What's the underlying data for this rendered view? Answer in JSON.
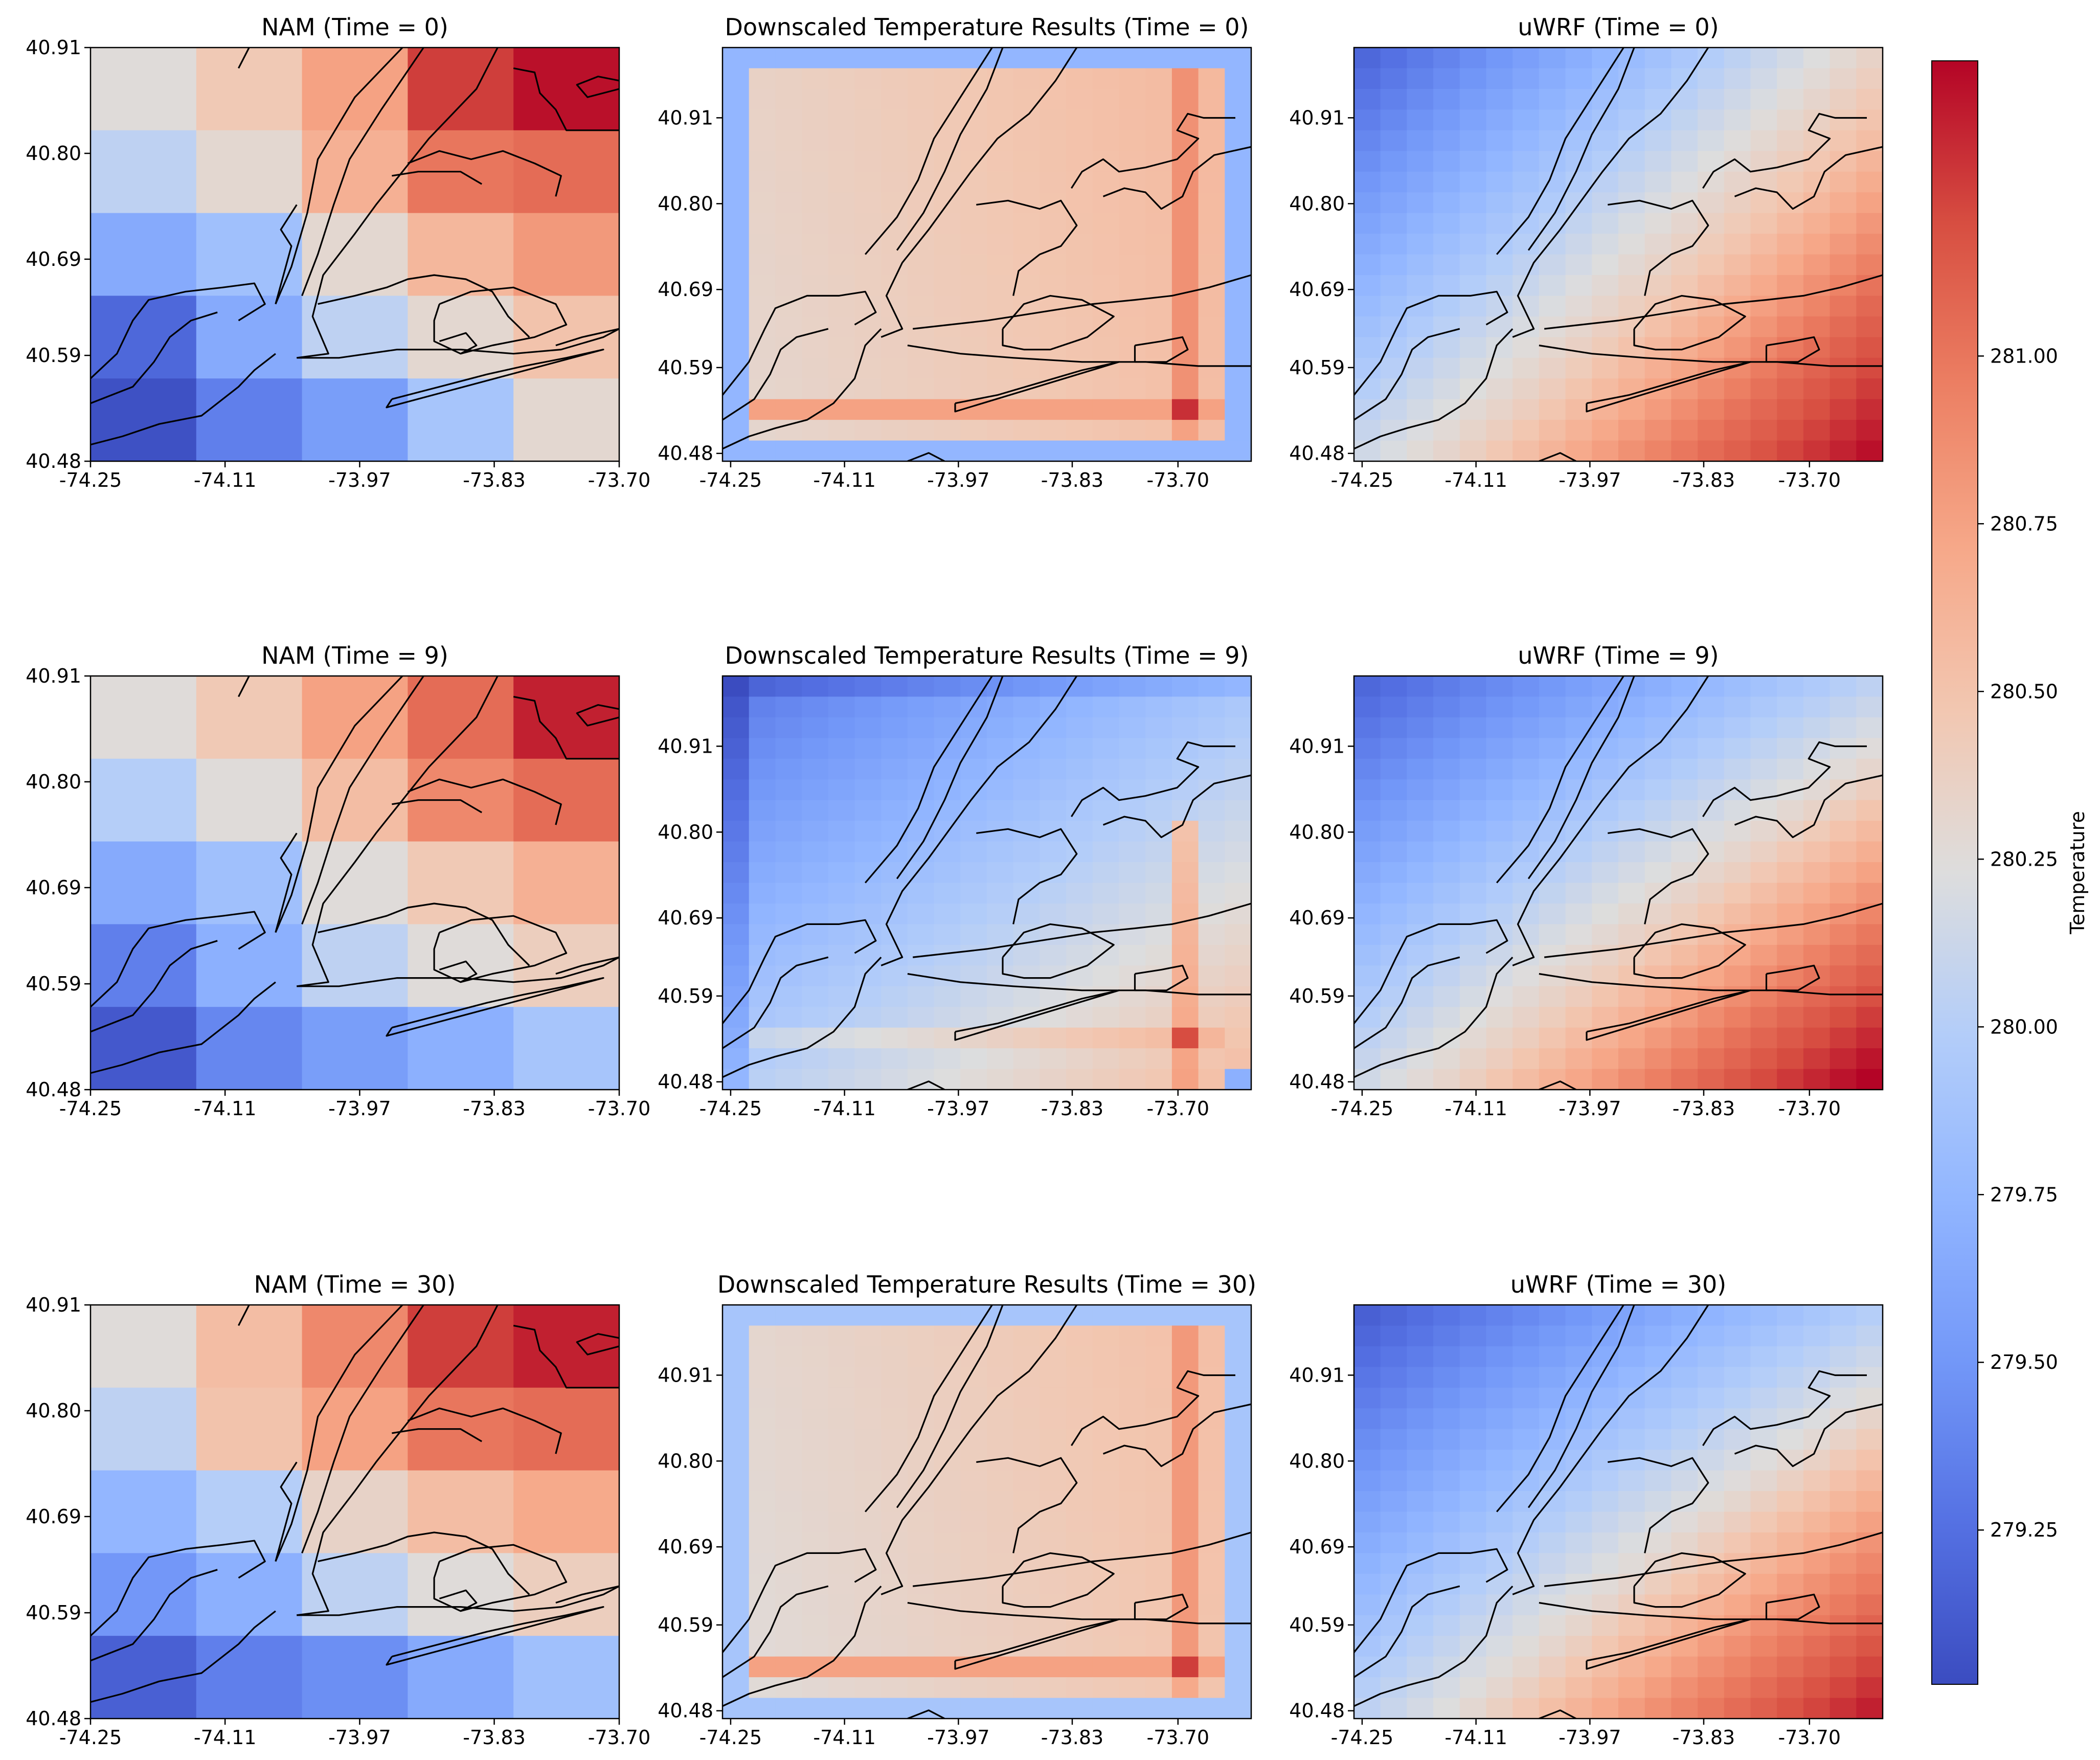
{
  "chart_data": [
    {
      "type": "heatmap",
      "title": "NAM (Time = 0)",
      "x_tick_labels": [
        "-74.25",
        "-74.11",
        "-73.97",
        "-73.83",
        "-73.70"
      ],
      "y_tick_labels": [
        "40.91",
        "40.80",
        "40.69",
        "40.59",
        "40.48"
      ],
      "nrows": 5,
      "ncols": 5,
      "xlim": [
        -74.25,
        -73.7
      ],
      "ylim": [
        40.48,
        40.91
      ],
      "grid": false,
      "values": [
        [
          280.25,
          280.45,
          280.75,
          281.25,
          281.4
        ],
        [
          280.05,
          280.3,
          280.65,
          281.0,
          281.05
        ],
        [
          279.65,
          279.85,
          280.3,
          280.6,
          280.8
        ],
        [
          279.2,
          279.65,
          280.05,
          280.3,
          280.5
        ],
        [
          279.05,
          279.35,
          279.55,
          279.9,
          280.3
        ]
      ]
    },
    {
      "type": "heatmap",
      "title": "Downscaled Temperature Results (Time = 0)",
      "x_tick_labels": [
        "-74.25",
        "-74.11",
        "-73.97",
        "-73.83",
        "-73.70"
      ],
      "y_tick_labels": [
        "40.91",
        "40.80",
        "40.69",
        "40.59",
        "40.48"
      ],
      "nrows": 20,
      "ncols": 20,
      "grid": false,
      "x_range": [
        -74.25,
        -73.6
      ],
      "y_range": [
        40.47,
        41.0
      ],
      "base_interior": 280.5,
      "description_values": {
        "border": 279.75,
        "interior": 280.45,
        "hot_column": 280.85,
        "hot_row": 280.75,
        "max": 281.3
      }
    },
    {
      "type": "heatmap",
      "title": "uWRF (Time = 0)",
      "x_tick_labels": [
        "-74.25",
        "-74.11",
        "-73.97",
        "-73.83",
        "-73.70"
      ],
      "y_tick_labels": [
        "40.91",
        "40.80",
        "40.69",
        "40.59",
        "40.48"
      ],
      "nrows": 20,
      "ncols": 20,
      "grid": false,
      "x_range": [
        -74.25,
        -73.6
      ],
      "y_range": [
        40.47,
        41.0
      ],
      "corner_values": {
        "top_left": 279.2,
        "top_right": 280.35,
        "bottom_left": 280.15,
        "bottom_right": 281.25
      }
    },
    {
      "type": "heatmap",
      "title": "NAM (Time = 9)",
      "x_tick_labels": [
        "-74.25",
        "-74.11",
        "-73.97",
        "-73.83",
        "-73.70"
      ],
      "y_tick_labels": [
        "40.91",
        "40.80",
        "40.69",
        "40.59",
        "40.48"
      ],
      "nrows": 5,
      "ncols": 5,
      "xlim": [
        -74.25,
        -73.7
      ],
      "ylim": [
        40.48,
        40.91
      ],
      "grid": false,
      "values": [
        [
          280.25,
          280.45,
          280.75,
          281.05,
          281.35
        ],
        [
          280.0,
          280.25,
          280.55,
          280.9,
          281.05
        ],
        [
          279.65,
          279.85,
          280.25,
          280.45,
          280.65
        ],
        [
          279.35,
          279.7,
          280.05,
          280.25,
          280.4
        ],
        [
          279.1,
          279.4,
          279.55,
          279.7,
          279.9
        ]
      ]
    },
    {
      "type": "heatmap",
      "title": "Downscaled Temperature Results (Time = 9)",
      "x_tick_labels": [
        "-74.25",
        "-74.11",
        "-73.97",
        "-73.83",
        "-73.70"
      ],
      "y_tick_labels": [
        "40.91",
        "40.80",
        "40.69",
        "40.59",
        "40.48"
      ],
      "nrows": 20,
      "ncols": 20,
      "grid": false,
      "x_range": [
        -74.25,
        -73.6
      ],
      "y_range": [
        40.47,
        41.0
      ],
      "description_values": {
        "top_left": 279.3,
        "top_right": 279.9,
        "bottom_left": 280.0,
        "bottom_right": 280.55,
        "hot_column": 280.75,
        "max": 281.2
      }
    },
    {
      "type": "heatmap",
      "title": "uWRF (Time = 9)",
      "x_tick_labels": [
        "-74.25",
        "-74.11",
        "-73.97",
        "-73.83",
        "-73.70"
      ],
      "y_tick_labels": [
        "40.91",
        "40.80",
        "40.69",
        "40.59",
        "40.48"
      ],
      "nrows": 20,
      "ncols": 20,
      "grid": false,
      "x_range": [
        -74.25,
        -73.6
      ],
      "y_range": [
        40.47,
        41.0
      ],
      "corner_values": {
        "top_left": 279.2,
        "top_right": 280.05,
        "bottom_left": 280.15,
        "bottom_right": 281.3
      }
    },
    {
      "type": "heatmap",
      "title": "NAM (Time = 30)",
      "x_tick_labels": [
        "-74.25",
        "-74.11",
        "-73.97",
        "-73.83",
        "-73.70"
      ],
      "y_tick_labels": [
        "40.91",
        "40.80",
        "40.69",
        "40.59",
        "40.48"
      ],
      "nrows": 5,
      "ncols": 5,
      "xlim": [
        -74.25,
        -73.7
      ],
      "ylim": [
        40.48,
        40.91
      ],
      "grid": false,
      "values": [
        [
          280.25,
          280.55,
          280.9,
          281.25,
          281.35
        ],
        [
          280.05,
          280.5,
          280.75,
          281.0,
          281.05
        ],
        [
          279.75,
          280.0,
          280.35,
          280.55,
          280.7
        ],
        [
          279.5,
          279.7,
          280.05,
          280.25,
          280.4
        ],
        [
          279.15,
          279.35,
          279.45,
          279.65,
          279.85
        ]
      ]
    },
    {
      "type": "heatmap",
      "title": "Downscaled Temperature Results (Time = 30)",
      "x_tick_labels": [
        "-74.25",
        "-74.11",
        "-73.97",
        "-73.83",
        "-73.70"
      ],
      "y_tick_labels": [
        "40.91",
        "40.80",
        "40.69",
        "40.59",
        "40.48"
      ],
      "nrows": 20,
      "ncols": 20,
      "grid": false,
      "x_range": [
        -74.25,
        -73.6
      ],
      "y_range": [
        40.47,
        41.0
      ],
      "description_values": {
        "border": 279.9,
        "interior": 280.4,
        "hot_column": 280.8,
        "hot_row": 280.75,
        "max": 281.25
      }
    },
    {
      "type": "heatmap",
      "title": "uWRF (Time = 30)",
      "x_tick_labels": [
        "-74.25",
        "-74.11",
        "-73.97",
        "-73.83",
        "-73.70"
      ],
      "y_tick_labels": [
        "40.91",
        "40.80",
        "40.69",
        "40.59",
        "40.48"
      ],
      "nrows": 20,
      "ncols": 20,
      "grid": false,
      "x_range": [
        -74.25,
        -73.6
      ],
      "y_range": [
        40.47,
        41.0
      ],
      "corner_values": {
        "top_left": 279.15,
        "top_right": 280.0,
        "bottom_left": 280.05,
        "bottom_right": 281.2
      }
    }
  ],
  "colorbar": {
    "label": "Temperature",
    "colormap": "coolwarm",
    "range": [
      279.02,
      281.44
    ],
    "ticks": [
      279.25,
      279.5,
      279.75,
      280.0,
      280.25,
      280.5,
      280.75,
      281.0
    ],
    "tick_labels": [
      "279.25",
      "279.50",
      "279.75",
      "280.00",
      "280.25",
      "280.50",
      "280.75",
      "281.00"
    ]
  },
  "coastline_color": "#000000"
}
